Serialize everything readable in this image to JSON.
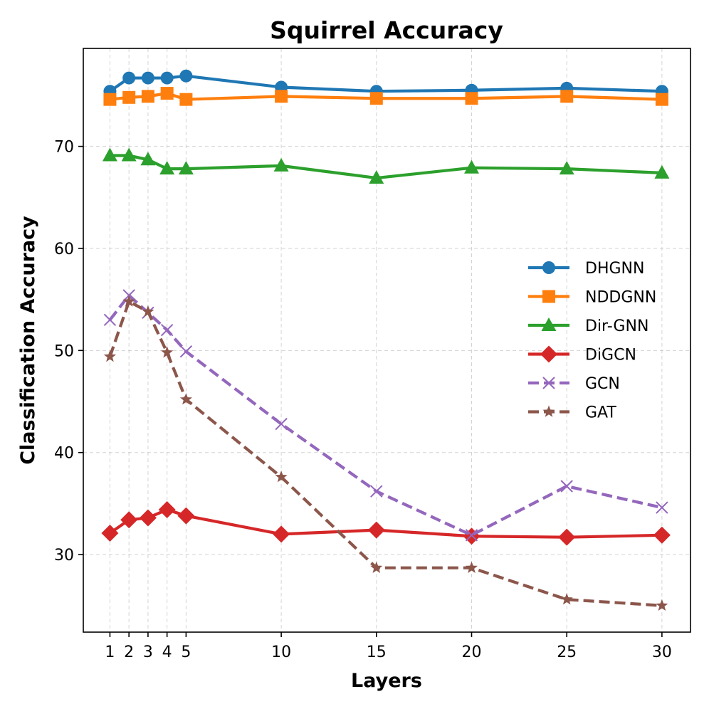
{
  "chart_data": {
    "type": "line",
    "title": "Squirrel Accuracy",
    "xlabel": "Layers",
    "ylabel": "Classification Accuracy",
    "x": [
      1,
      2,
      3,
      4,
      5,
      10,
      15,
      20,
      25,
      30
    ],
    "xticks": [
      1,
      2,
      3,
      4,
      5,
      10,
      15,
      20,
      25,
      30
    ],
    "yticks": [
      30,
      40,
      50,
      60,
      70
    ],
    "xlim": [
      -0.4,
      31.5
    ],
    "ylim": [
      22.4,
      79.6
    ],
    "grid": true,
    "legend_position": "center-right",
    "series": [
      {
        "name": "DHGNN",
        "color": "#1f77b4",
        "marker": "circle",
        "linestyle": "solid",
        "values": [
          75.4,
          76.7,
          76.7,
          76.7,
          76.9,
          75.8,
          75.4,
          75.5,
          75.7,
          75.4
        ]
      },
      {
        "name": "NDDGNN",
        "color": "#ff7f0e",
        "marker": "square",
        "linestyle": "solid",
        "values": [
          74.6,
          74.8,
          74.9,
          75.2,
          74.6,
          74.9,
          74.7,
          74.7,
          74.9,
          74.6
        ]
      },
      {
        "name": "Dir-GNN",
        "color": "#2ca02c",
        "marker": "triangle",
        "linestyle": "solid",
        "values": [
          69.1,
          69.1,
          68.7,
          67.8,
          67.8,
          68.1,
          66.9,
          67.9,
          67.8,
          67.4
        ]
      },
      {
        "name": "DiGCN",
        "color": "#d62728",
        "marker": "diamond",
        "linestyle": "solid",
        "values": [
          32.1,
          33.4,
          33.6,
          34.4,
          33.8,
          32.0,
          32.4,
          31.8,
          31.7,
          31.9
        ]
      },
      {
        "name": "GCN",
        "color": "#9467bd",
        "marker": "x",
        "linestyle": "dashed",
        "values": [
          53.0,
          55.4,
          53.7,
          52.0,
          49.9,
          42.8,
          36.2,
          31.9,
          36.7,
          34.6
        ]
      },
      {
        "name": "GAT",
        "color": "#8c564b",
        "marker": "star",
        "linestyle": "dashed",
        "values": [
          49.4,
          54.8,
          53.8,
          49.8,
          45.2,
          37.6,
          28.7,
          28.7,
          25.6,
          25.0
        ]
      }
    ]
  }
}
